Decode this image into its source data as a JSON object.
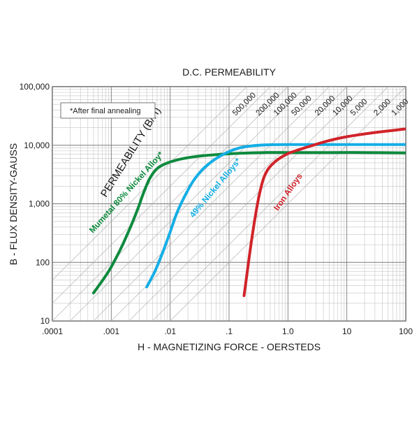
{
  "chart_data": {
    "type": "line",
    "title": "D.C. PERMEABILITY",
    "xlabel": "H - MAGNETIZING FORCE - OERSTEDS",
    "ylabel": "B - FLUX DENSITY-GAUSS",
    "x_scale": "log",
    "y_scale": "log",
    "xlim": [
      0.0001,
      100
    ],
    "ylim": [
      10,
      100000
    ],
    "grid": true,
    "x_ticks": [
      {
        "value": 0.0001,
        "label": ".0001"
      },
      {
        "value": 0.001,
        "label": ".001"
      },
      {
        "value": 0.01,
        "label": ".01"
      },
      {
        "value": 0.1,
        "label": ".1"
      },
      {
        "value": 1,
        "label": "1.0"
      },
      {
        "value": 10,
        "label": "10"
      },
      {
        "value": 100,
        "label": "100"
      }
    ],
    "y_ticks": [
      {
        "value": 10,
        "label": "10"
      },
      {
        "value": 100,
        "label": "100"
      },
      {
        "value": 1000,
        "label": "1,000"
      },
      {
        "value": 10000,
        "label": "10,000"
      },
      {
        "value": 100000,
        "label": "100,000"
      }
    ],
    "permeability_axis_title": "PERMEABILITY (B/H)",
    "permeability_lines": [
      {
        "value": 500000,
        "label": "500,000"
      },
      {
        "value": 200000,
        "label": "200,000"
      },
      {
        "value": 100000,
        "label": "100,000"
      },
      {
        "value": 50000,
        "label": "50,000"
      },
      {
        "value": 20000,
        "label": "20,000"
      },
      {
        "value": 10000,
        "label": "10,000"
      },
      {
        "value": 5000,
        "label": "5,000"
      },
      {
        "value": 2000,
        "label": "2,000"
      },
      {
        "value": 1000,
        "label": "1,000"
      }
    ],
    "series": [
      {
        "name": "Mumetal 80% Nickel Alloy*",
        "color": "#0e8a3e",
        "x": [
          0.0005,
          0.0009,
          0.0014,
          0.002,
          0.0028,
          0.0035,
          0.0045,
          0.006,
          0.009,
          0.015,
          0.03,
          0.07,
          0.15,
          0.4,
          1,
          5,
          20,
          100
        ],
        "y": [
          30,
          70,
          160,
          350,
          800,
          1500,
          2700,
          4000,
          5000,
          5800,
          6500,
          7000,
          7300,
          7500,
          7500,
          7500,
          7500,
          7400
        ]
      },
      {
        "name": "49% Nickel Alloys*",
        "color": "#14aee5",
        "x": [
          0.004,
          0.0055,
          0.0075,
          0.01,
          0.013,
          0.018,
          0.025,
          0.035,
          0.05,
          0.07,
          0.1,
          0.15,
          0.25,
          0.5,
          1,
          3,
          10,
          100
        ],
        "y": [
          38,
          70,
          150,
          330,
          700,
          1400,
          2500,
          3800,
          5200,
          6500,
          7800,
          9000,
          9800,
          10200,
          10300,
          10300,
          10300,
          10300
        ]
      },
      {
        "name": "Iron Alloys",
        "color": "#d1232a",
        "x": [
          0.18,
          0.2,
          0.23,
          0.27,
          0.32,
          0.38,
          0.46,
          0.6,
          0.8,
          1.1,
          1.6,
          2.5,
          5,
          10,
          30,
          100
        ],
        "y": [
          27,
          60,
          170,
          500,
          1300,
          2600,
          3900,
          5200,
          6400,
          7500,
          8500,
          9800,
          12000,
          14000,
          16500,
          19000
        ]
      }
    ],
    "annotations": [
      "*After final annealing"
    ]
  }
}
